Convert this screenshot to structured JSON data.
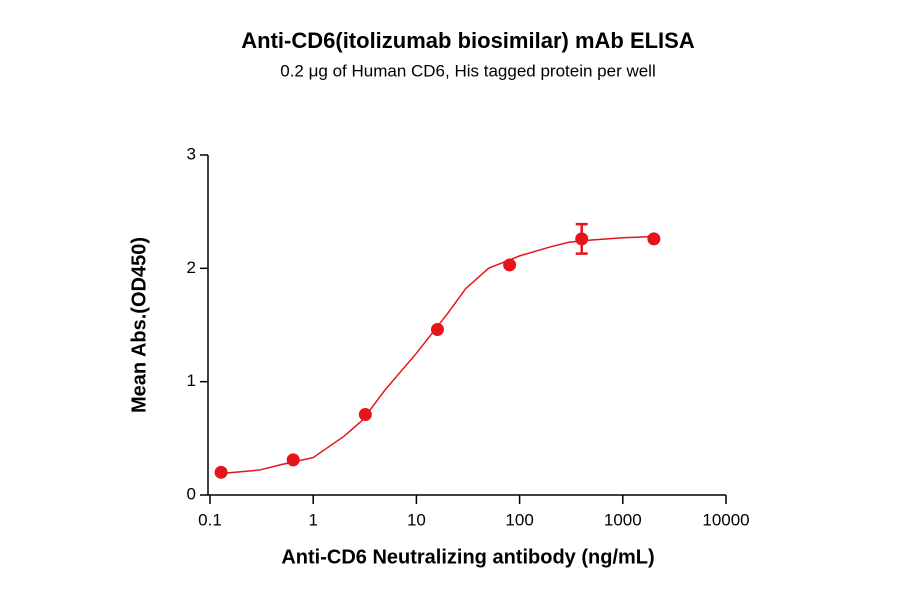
{
  "chart_data": {
    "type": "scatter",
    "title": "Anti-CD6(itolizumab biosimilar) mAb ELISA",
    "subtitle": "0.2 μg of Human CD6, His tagged protein per well",
    "x_label": "Anti-CD6 Neutralizing antibody (ng/mL)",
    "y_label": "Mean Abs.(OD450)",
    "x_scale": "log",
    "xlim": [
      0.1,
      10000
    ],
    "xticks": [
      0.1,
      1,
      10,
      100,
      1000,
      10000
    ],
    "ylim": [
      0,
      3
    ],
    "yticks": [
      0,
      1,
      2,
      3
    ],
    "color": "#e8141b",
    "points": {
      "x": [
        0.128,
        0.64,
        3.2,
        16,
        80,
        400,
        2000
      ],
      "values": [
        0.2,
        0.31,
        0.71,
        1.46,
        2.03,
        2.26,
        2.26
      ],
      "errors": [
        null,
        null,
        null,
        null,
        null,
        0.13,
        null
      ]
    },
    "fit": {
      "x": [
        0.128,
        0.3,
        0.5,
        1,
        2,
        3,
        5,
        10,
        20,
        30,
        50,
        100,
        200,
        300,
        500,
        1000,
        2000
      ],
      "values": [
        0.19,
        0.22,
        0.27,
        0.33,
        0.52,
        0.66,
        0.93,
        1.25,
        1.6,
        1.82,
        2.0,
        2.11,
        2.19,
        2.23,
        2.25,
        2.27,
        2.28
      ]
    }
  }
}
